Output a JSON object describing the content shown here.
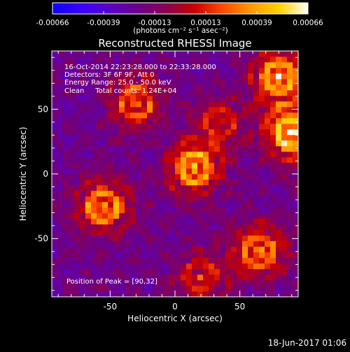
{
  "chart_data": {
    "type": "heatmap",
    "title": "Reconstructed RHESSI Image",
    "xlabel": "Heliocentric X (arcsec)",
    "ylabel": "Heliocentric Y (arcsec)",
    "xlim": [
      -95,
      95
    ],
    "ylim": [
      -95,
      95
    ],
    "x_ticks": [
      -50,
      0,
      50
    ],
    "y_ticks": [
      -50,
      0,
      50
    ],
    "colorbar": {
      "min": -0.00066,
      "max": 0.00066,
      "tick_labels": [
        "-0.00066",
        "-0.00039",
        "-0.00013",
        "0.00013",
        "0.00039",
        "0.00066"
      ],
      "units_label": "(photons cm⁻² s⁻¹ asec⁻²)",
      "colors": [
        "#0a00ff",
        "#3a00ff",
        "#5a00c8",
        "#6a008c",
        "#8a0050",
        "#c80000",
        "#ff4a00",
        "#ff9a00",
        "#ffd200",
        "#ffffff"
      ]
    },
    "annotations": {
      "time": "16-Oct-2014 22:23:28.000 to 22:33:28.000",
      "detectors": "Detectors: 3F 6F 9F, Att 0",
      "energy": "Energy Range: 25.0 - 50.0 keV",
      "clean": "Clean     Total counts: 1.24E+04",
      "peak": "Position of Peak = [90,32]"
    },
    "footer_timestamp": "18-Jun-2017 01:06",
    "sources": [
      {
        "x": 90,
        "y": 32,
        "relative_intensity": 1.0
      },
      {
        "x": 80,
        "y": 75,
        "relative_intensity": 0.85
      },
      {
        "x": 15,
        "y": 5,
        "relative_intensity": 0.8
      },
      {
        "x": -55,
        "y": -25,
        "relative_intensity": 0.75
      },
      {
        "x": 65,
        "y": -60,
        "relative_intensity": 0.7
      },
      {
        "x": -30,
        "y": 55,
        "relative_intensity": 0.6
      },
      {
        "x": 20,
        "y": -80,
        "relative_intensity": 0.45
      },
      {
        "x": 35,
        "y": 40,
        "relative_intensity": 0.4
      }
    ]
  }
}
